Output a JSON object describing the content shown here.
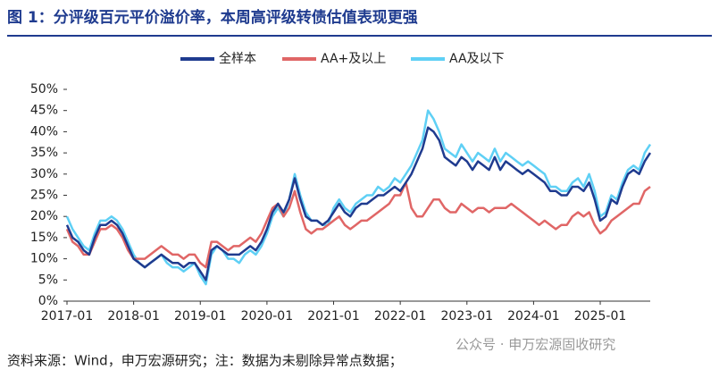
{
  "chart_data": {
    "type": "line",
    "title": "图 1：分评级百元平价溢价率，本周高评级转债估值表现更强",
    "source": "资料来源：Wind，申万宏源研究；注：数据为未剔除异常点数据；",
    "watermark": "公众号 · 申万宏源固收研究",
    "x": [
      "2017-01",
      "2017-02",
      "2017-03",
      "2017-04",
      "2017-05",
      "2017-06",
      "2017-07",
      "2017-08",
      "2017-09",
      "2017-10",
      "2017-11",
      "2017-12",
      "2018-01",
      "2018-02",
      "2018-03",
      "2018-04",
      "2018-05",
      "2018-06",
      "2018-07",
      "2018-08",
      "2018-09",
      "2018-10",
      "2018-11",
      "2018-12",
      "2019-01",
      "2019-02",
      "2019-03",
      "2019-04",
      "2019-05",
      "2019-06",
      "2019-07",
      "2019-08",
      "2019-09",
      "2019-10",
      "2019-11",
      "2019-12",
      "2020-01",
      "2020-02",
      "2020-03",
      "2020-04",
      "2020-05",
      "2020-06",
      "2020-07",
      "2020-08",
      "2020-09",
      "2020-10",
      "2020-11",
      "2020-12",
      "2021-01",
      "2021-02",
      "2021-03",
      "2021-04",
      "2021-05",
      "2021-06",
      "2021-07",
      "2021-08",
      "2021-09",
      "2021-10",
      "2021-11",
      "2021-12",
      "2022-01",
      "2022-02",
      "2022-03",
      "2022-04",
      "2022-05",
      "2022-06",
      "2022-07",
      "2022-08",
      "2022-09",
      "2022-10",
      "2022-11",
      "2022-12",
      "2023-01",
      "2023-02",
      "2023-03",
      "2023-04",
      "2023-05",
      "2023-06",
      "2023-07",
      "2023-08",
      "2023-09",
      "2023-10",
      "2023-11",
      "2023-12",
      "2024-01",
      "2024-02",
      "2024-03",
      "2024-04",
      "2024-05",
      "2024-06",
      "2024-07",
      "2024-08",
      "2024-09",
      "2024-10",
      "2024-11",
      "2024-12",
      "2025-01",
      "2025-02",
      "2025-03",
      "2025-04",
      "2025-05",
      "2025-06",
      "2025-07",
      "2025-08",
      "2025-09",
      "2025-10"
    ],
    "xticks": [
      "2017-01",
      "2018-01",
      "2019-01",
      "2020-01",
      "2021-01",
      "2022-01",
      "2023-01",
      "2024-01",
      "2025-01"
    ],
    "ylim": [
      0,
      50
    ],
    "yticks": [
      {
        "value": 0,
        "label": "0%"
      },
      {
        "value": 5,
        "label": "5%"
      },
      {
        "value": 10,
        "label": "10%"
      },
      {
        "value": 15,
        "label": "15%"
      },
      {
        "value": 20,
        "label": "20%"
      },
      {
        "value": 25,
        "label": "25%"
      },
      {
        "value": 30,
        "label": "30%"
      },
      {
        "value": 35,
        "label": "35%"
      },
      {
        "value": 40,
        "label": "40%"
      },
      {
        "value": 45,
        "label": "45%"
      },
      {
        "value": 50,
        "label": "50%"
      }
    ],
    "legend": "top",
    "series": [
      {
        "name": "全样本",
        "color": "#1f3b8f",
        "values": [
          18,
          15,
          14,
          12,
          11,
          15,
          18,
          18,
          19,
          18,
          16,
          13,
          10,
          9,
          8,
          9,
          10,
          11,
          10,
          9,
          9,
          8,
          9,
          9,
          7,
          5,
          12,
          13,
          12,
          11,
          11,
          11,
          12,
          13,
          12,
          14,
          17,
          21,
          23,
          21,
          24,
          29,
          24,
          20,
          19,
          19,
          18,
          19,
          21,
          23,
          21,
          20,
          22,
          23,
          23,
          24,
          25,
          25,
          26,
          27,
          26,
          28,
          30,
          33,
          36,
          41,
          40,
          38,
          34,
          33,
          32,
          34,
          33,
          31,
          33,
          32,
          31,
          34,
          31,
          33,
          32,
          31,
          30,
          31,
          30,
          29,
          28,
          26,
          26,
          25,
          25,
          27,
          27,
          26,
          28,
          24,
          19,
          20,
          24,
          23,
          27,
          30,
          31,
          30,
          33,
          35
        ]
      },
      {
        "name": "AA+及以上",
        "color": "#e06666",
        "values": [
          17,
          14,
          13,
          11,
          11,
          14,
          17,
          17,
          18,
          17,
          15,
          12,
          10,
          10,
          10,
          11,
          12,
          13,
          12,
          11,
          11,
          10,
          11,
          11,
          9,
          8,
          14,
          14,
          13,
          12,
          13,
          13,
          14,
          15,
          14,
          16,
          19,
          22,
          23,
          20,
          22,
          26,
          21,
          17,
          16,
          17,
          17,
          18,
          19,
          20,
          18,
          17,
          18,
          19,
          19,
          20,
          21,
          22,
          23,
          25,
          25,
          28,
          22,
          20,
          20,
          22,
          24,
          24,
          22,
          21,
          21,
          23,
          22,
          21,
          22,
          22,
          21,
          22,
          22,
          22,
          23,
          22,
          21,
          20,
          19,
          18,
          19,
          18,
          17,
          18,
          18,
          20,
          21,
          20,
          21,
          18,
          16,
          17,
          19,
          20,
          21,
          22,
          23,
          23,
          26,
          27
        ]
      },
      {
        "name": "AA及以下",
        "color": "#5fd0f5",
        "values": [
          20,
          17,
          15,
          13,
          12,
          16,
          19,
          19,
          20,
          19,
          17,
          14,
          11,
          9,
          8,
          9,
          10,
          11,
          9,
          8,
          8,
          7,
          8,
          9,
          6,
          4,
          11,
          13,
          12,
          10,
          10,
          9,
          11,
          12,
          11,
          13,
          16,
          20,
          22,
          20,
          24,
          30,
          25,
          21,
          19,
          19,
          18,
          18,
          22,
          24,
          22,
          21,
          23,
          24,
          25,
          25,
          27,
          26,
          27,
          29,
          28,
          30,
          32,
          35,
          38,
          45,
          43,
          40,
          36,
          35,
          34,
          37,
          35,
          33,
          35,
          34,
          33,
          36,
          33,
          35,
          34,
          33,
          32,
          33,
          32,
          31,
          30,
          27,
          27,
          26,
          26,
          28,
          29,
          27,
          30,
          26,
          20,
          21,
          25,
          24,
          28,
          31,
          32,
          31,
          35,
          37
        ]
      }
    ]
  }
}
